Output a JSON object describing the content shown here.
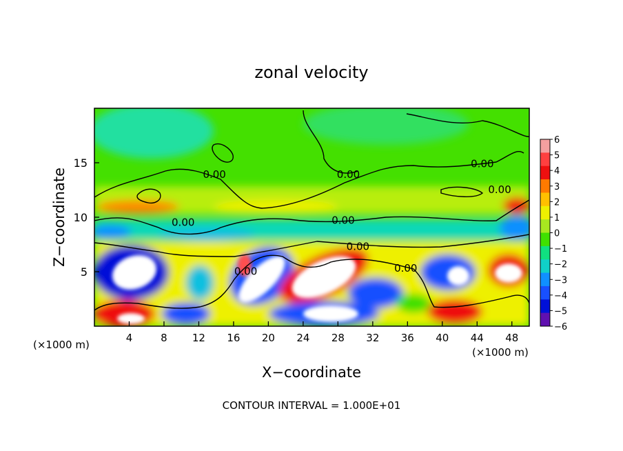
{
  "chart_data": {
    "type": "heatmap",
    "title": "zonal velocity",
    "xlabel": "X−coordinate",
    "ylabel": "Z−coordinate",
    "x_scale_note_left": "(×1000 m)",
    "x_scale_note_right": "(×1000 m)",
    "footer": "CONTOUR INTERVAL = 1.000E+01",
    "xlim": [
      0,
      50
    ],
    "ylim": [
      0,
      20
    ],
    "x_ticks": [
      4,
      8,
      12,
      16,
      20,
      24,
      28,
      32,
      36,
      40,
      44,
      48
    ],
    "y_ticks": [
      5,
      10,
      15
    ],
    "contour_label": "0.00",
    "contour_labels": [
      {
        "x": 13.8,
        "z": 13.6,
        "text": "0.00"
      },
      {
        "x": 29.2,
        "z": 13.6,
        "text": "0.00"
      },
      {
        "x": 44.6,
        "z": 14.6,
        "text": "0.00"
      },
      {
        "x": 46.6,
        "z": 12.2,
        "text": "0.00"
      },
      {
        "x": 10.2,
        "z": 9.2,
        "text": "0.00"
      },
      {
        "x": 28.6,
        "z": 9.4,
        "text": "0.00"
      },
      {
        "x": 30.3,
        "z": 7.0,
        "text": "0.00"
      },
      {
        "x": 17.4,
        "z": 4.7,
        "text": "0.00"
      },
      {
        "x": 35.8,
        "z": 5.0,
        "text": "0.00"
      }
    ],
    "colorbar": {
      "ticks": [
        6,
        5,
        4,
        3,
        2,
        1,
        0,
        -1,
        -2,
        -3,
        -4,
        -5,
        -6
      ],
      "colors": [
        "#f4a0a0",
        "#ff4040",
        "#ee1010",
        "#ff7a00",
        "#ffc000",
        "#eef000",
        "#a8e820",
        "#40e000",
        "#10e080",
        "#10d0c8",
        "#1090ff",
        "#1850ff",
        "#0010d8",
        "#6010b0"
      ]
    }
  }
}
